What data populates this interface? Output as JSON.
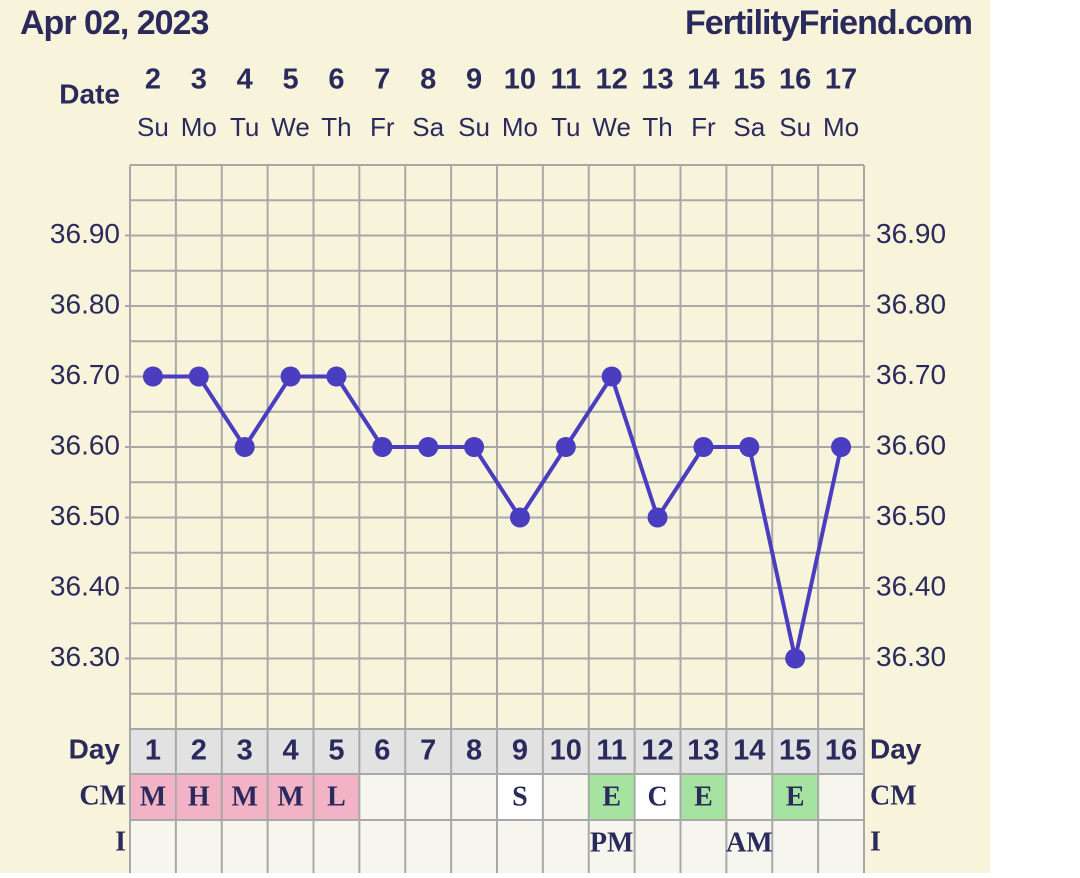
{
  "header": {
    "date": "Apr 02, 2023",
    "site": "FertilityFriend.com"
  },
  "chart_data": {
    "type": "line",
    "x_label": "Date",
    "categories": [
      "2",
      "3",
      "4",
      "5",
      "6",
      "7",
      "8",
      "9",
      "10",
      "11",
      "12",
      "13",
      "14",
      "15",
      "16",
      "17"
    ],
    "weekdays": [
      "Su",
      "Mo",
      "Tu",
      "We",
      "Th",
      "Fr",
      "Sa",
      "Su",
      "Mo",
      "Tu",
      "We",
      "Th",
      "Fr",
      "Sa",
      "Su",
      "Mo"
    ],
    "values": [
      36.7,
      36.7,
      36.6,
      36.7,
      36.7,
      36.6,
      36.6,
      36.6,
      36.5,
      36.6,
      36.7,
      36.5,
      36.6,
      36.6,
      36.3,
      36.6
    ],
    "color": "#4a3dbf",
    "ylim": [
      36.2,
      37.0
    ],
    "yticks": [
      {
        "value": 36.9,
        "label": "36.90"
      },
      {
        "value": 36.8,
        "label": "36.80"
      },
      {
        "value": 36.7,
        "label": "36.70"
      },
      {
        "value": 36.6,
        "label": "36.60"
      },
      {
        "value": 36.5,
        "label": "36.50"
      },
      {
        "value": 36.4,
        "label": "36.40"
      },
      {
        "value": 36.3,
        "label": "36.30"
      }
    ],
    "minor_yticks": [
      36.25,
      36.35,
      36.45,
      36.55,
      36.65,
      36.75,
      36.85,
      36.95
    ],
    "grid": true,
    "day_label": "Day",
    "days": [
      "1",
      "2",
      "3",
      "4",
      "5",
      "6",
      "7",
      "8",
      "9",
      "10",
      "11",
      "12",
      "13",
      "14",
      "15",
      "16"
    ],
    "cm_label": "CM",
    "cm": [
      "M",
      "H",
      "M",
      "M",
      "L",
      null,
      null,
      null,
      "S",
      null,
      "E",
      "C",
      "E",
      null,
      "E",
      null
    ],
    "cm_colors": [
      "#f2b3c6",
      "#f2b3c6",
      "#f2b3c6",
      "#f2b3c6",
      "#f2b3c6",
      null,
      null,
      null,
      "#ffffff",
      null,
      "#a6e3a1",
      "#ffffff",
      "#a6e3a1",
      null,
      "#a6e3a1",
      null
    ],
    "i_label": "I",
    "intercourse": [
      null,
      null,
      null,
      null,
      null,
      null,
      null,
      null,
      null,
      null,
      "PM",
      null,
      null,
      "AM",
      null,
      null
    ]
  }
}
